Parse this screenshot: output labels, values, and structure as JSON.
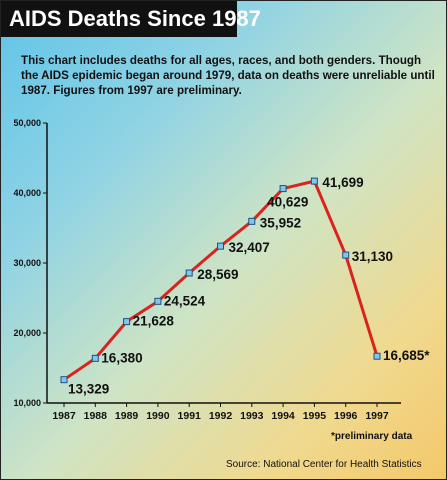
{
  "header": {
    "title": "AIDS Deaths Since 1987",
    "description": "This chart includes deaths for all ages, races, and both genders. Though the AIDS epidemic began around 1979, data on deaths were unreliable until 1987. Figures from 1997 are preliminary."
  },
  "footnote": "*preliminary data",
  "source": "Source:  National Center for Health Statistics",
  "colors": {
    "line": "#d9231f",
    "marker_fill": "#7fc8e8",
    "marker_stroke": "#1d4f8a",
    "title_bg": "#111111"
  },
  "chart_data": {
    "type": "line",
    "title": "AIDS Deaths Since 1987",
    "xlabel": "",
    "ylabel": "",
    "categories": [
      "1987",
      "1988",
      "1989",
      "1990",
      "1991",
      "1992",
      "1993",
      "1994",
      "1995",
      "1996",
      "1997"
    ],
    "values": [
      13329,
      16380,
      21628,
      24524,
      28569,
      32407,
      35952,
      40629,
      41699,
      31130,
      16685
    ],
    "data_labels": [
      "13,329",
      "16,380",
      "21,628",
      "24,524",
      "28,569",
      "32,407",
      "35,952",
      "40,629",
      "41,699",
      "31,130",
      "16,685*"
    ],
    "ylim": [
      10000,
      50000
    ],
    "yticks": [
      10000,
      20000,
      30000,
      40000,
      50000
    ],
    "ytick_labels": [
      "10,000",
      "20,000",
      "30,000",
      "40,000",
      "50,000"
    ],
    "grid": false,
    "legend": "none"
  }
}
